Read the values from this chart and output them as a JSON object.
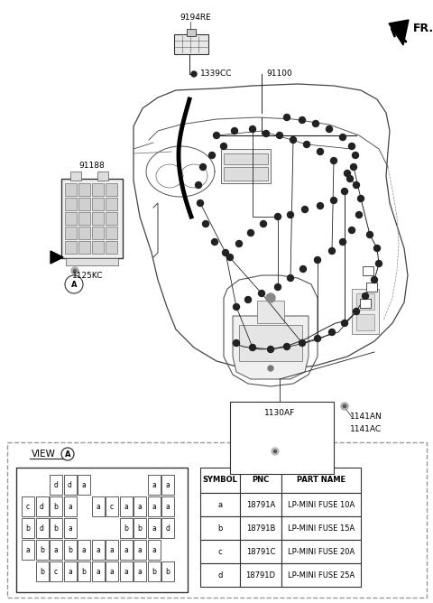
{
  "bg_color": "#ffffff",
  "fuse_grid": {
    "row1": [
      "",
      "",
      "d",
      "d",
      "a",
      "",
      "",
      "",
      "",
      "a",
      "a"
    ],
    "row2": [
      "c",
      "d",
      "b",
      "a",
      "",
      "a",
      "c",
      "a",
      "a",
      "a",
      "a"
    ],
    "row3": [
      "b",
      "d",
      "b",
      "a",
      "",
      "",
      "",
      "b",
      "b",
      "a",
      "d"
    ],
    "row4": [
      "a",
      "b",
      "a",
      "b",
      "a",
      "a",
      "a",
      "a",
      "a",
      "a",
      ""
    ],
    "row5": [
      "",
      "b",
      "c",
      "a",
      "b",
      "a",
      "a",
      "a",
      "a",
      "b",
      "b"
    ]
  },
  "table_headers": [
    "SYMBOL",
    "PNC",
    "PART NAME"
  ],
  "table_rows": [
    [
      "a",
      "18791A",
      "LP-MINI FUSE 10A"
    ],
    [
      "b",
      "18791B",
      "LP-MINI FUSE 15A"
    ],
    [
      "c",
      "18791C",
      "LP-MINI FUSE 20A"
    ],
    [
      "d",
      "18791D",
      "LP-MINI FUSE 25A"
    ]
  ],
  "label_9194RE": "9194RE",
  "label_1339CC": "1339CC",
  "label_91100": "91100",
  "label_91188": "91188",
  "label_1125KC": "1125KC",
  "label_1130AF": "1130AF",
  "label_1141AN": "1141AN",
  "label_1141AC": "1141AC",
  "label_FR": "FR.",
  "label_VIEW": "VIEW",
  "label_A": "A"
}
